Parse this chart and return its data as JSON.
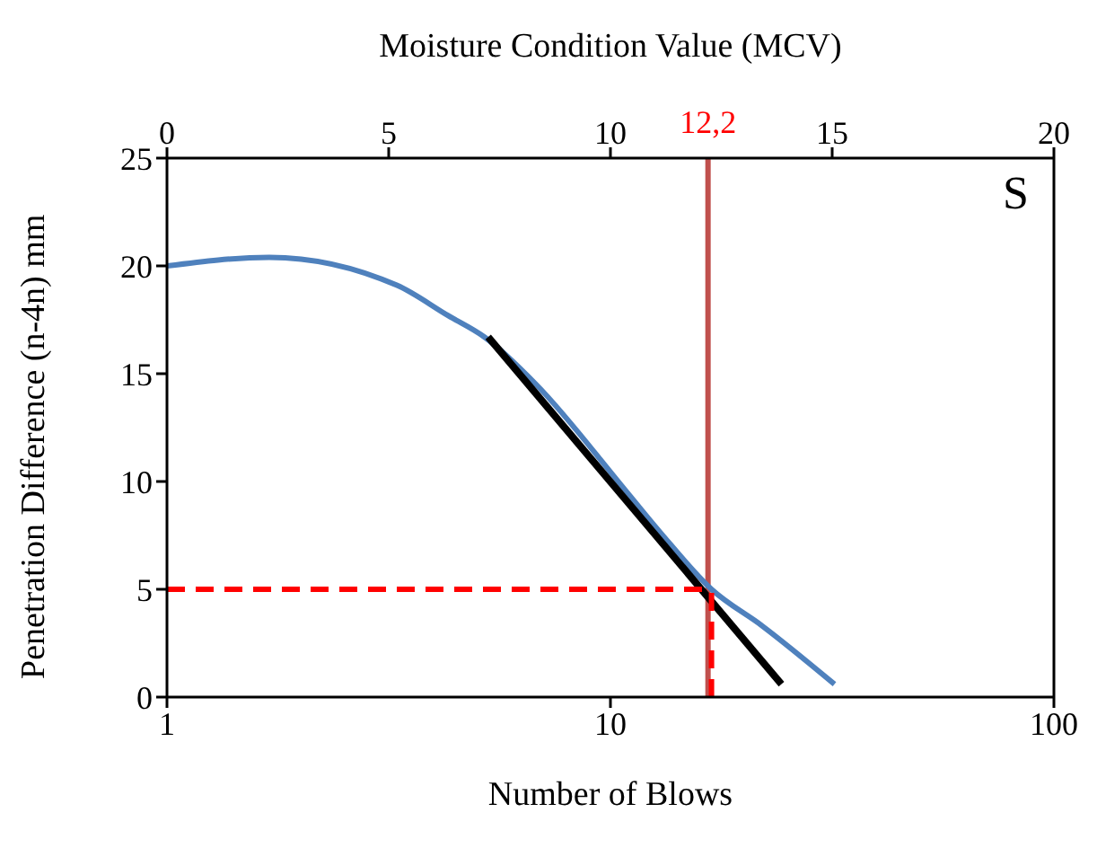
{
  "chart_data": {
    "type": "line",
    "xlabel": "Number of Blows",
    "ylabel": "Penetration Difference (n-4n) mm",
    "x2label": "Moisture Condition Value (MCV)",
    "log": "x",
    "xlim": [
      1,
      100
    ],
    "xticks": [
      1,
      10,
      100
    ],
    "x2lim": [
      0,
      20
    ],
    "x2ticks": [
      0,
      5,
      10,
      15,
      20
    ],
    "ylim": [
      0,
      25
    ],
    "yticks": [
      0,
      5,
      10,
      15,
      20,
      25
    ],
    "marker": "none",
    "annotations": [
      "S"
    ],
    "ref_lines": [
      {
        "axis": "x2",
        "value": 12.2,
        "label": "12,2",
        "color": "#c0504d"
      }
    ],
    "series": [
      {
        "color": "#4f81bd",
        "x": [
          1,
          1.7,
          3.3,
          4.3,
          5.2,
          6.8,
          10.8,
          13,
          16.9,
          22,
          32
        ],
        "values": [
          20,
          20.4,
          19.1,
          17.7,
          16.7,
          14.5,
          9.6,
          7.6,
          5,
          3.3,
          0.6
        ]
      },
      {
        "color": "#000000",
        "x": [
          5.3,
          24.3
        ],
        "values": [
          16.7,
          0.6
        ]
      },
      {
        "color": "#ff0000",
        "line_style": "dashed",
        "x": [
          1,
          16.9
        ],
        "values": [
          5,
          5
        ]
      },
      {
        "color": "#ff0000",
        "line_style": "dashed",
        "x": [
          16.9,
          16.9
        ],
        "values": [
          0,
          5
        ]
      }
    ]
  }
}
